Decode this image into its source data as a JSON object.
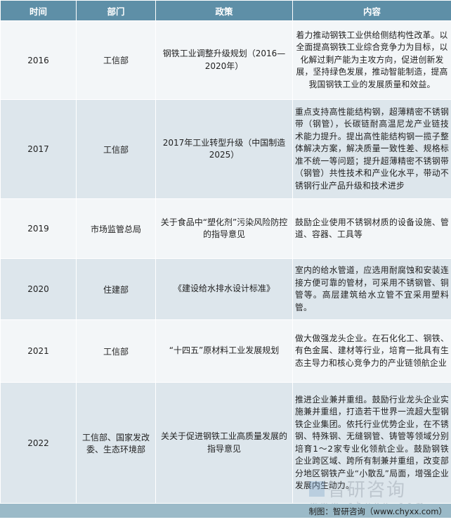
{
  "table": {
    "headers": [
      "时间",
      "部门",
      "政策",
      "内容"
    ],
    "rows": [
      {
        "year": "2016",
        "dept": "工信部",
        "policy": "钢铁工业调整升级规划（2016—2020年）",
        "content": "着力推动钢铁工业供给侧结构性改革。以全面提高钢铁工业综合竞争力为目标，以化解过剩产能为主攻方向，促进创新发展，坚持绿色发展，推动智能制造，提高我国钢铁工业的发展质量和效益。"
      },
      {
        "year": "2017",
        "dept": "工信部",
        "policy": "2017年工业转型升级（中国制造2025）",
        "content": "重点支持高性能结构钢，超薄精密不锈钢带（钢管），长碳链耐高温尼龙产业链技术能力提升。提出高性能结构钢一揽子整体解决方案，解决质量一致性差、规格标准不统一等问题；提升超薄精密不锈钢带（钢管）共性技术和产业化水平，带动不锈钢行业产品升级和技术进步"
      },
      {
        "year": "2019",
        "dept": "市场监管总局",
        "policy": "关于食品中“塑化剂”污染风险防控的指导意见",
        "content": "鼓励企业使用不锈钢材质的设备设施、管道、容器、工具等"
      },
      {
        "year": "2020",
        "dept": "住建部",
        "policy": "《建设给水排水设计标准》",
        "content": "室内的给水管道，应选用耐腐蚀和安装连接方便可靠的管材，可采用不锈钢管、铜管等。高层建筑给水立管不宜采用塑料管。"
      },
      {
        "year": "2021",
        "dept": "工信部",
        "policy": "“十四五”原材料工业发展规划",
        "content": "做大做强龙头企业。在石化化工、钢铁、有色金属、建材等行业，培育一批具有生态主导力和核心竞争力的产业链领航企业"
      },
      {
        "year": "2022",
        "dept": "工信部、国家发改委、生态环境部",
        "policy": "关关于促进钢铁工业高质量发展的指导意见",
        "content": "推进企业兼并重组。鼓励行业龙头企业实施兼并重组，打造若干世界一流超大型钢铁企业集团。依托行业优势企业，在不锈钢、特殊钢、无缝钢管、铸管等领域分别培育1～2家专业化领航企业。鼓励钢铁企业跨区域、跨所有制兼并重组，改变部分地区钢铁产业“小散乱”局面，增强企业发展内生动力。"
      }
    ]
  },
  "footer": {
    "source": "制图：智研咨询（www.chyxx.com）"
  },
  "watermark": {
    "name": "智研咨询",
    "url": "www.chyxx.com"
  },
  "colors": {
    "header_bg": "#5e8fa7",
    "row_light": "#f3f6f8",
    "row_dark": "#dde6ec",
    "footer_bg": "#9bbac8"
  }
}
